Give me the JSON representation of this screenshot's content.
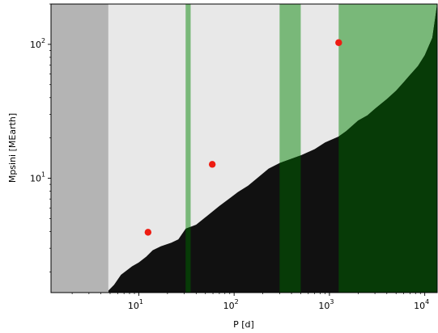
{
  "chart_data": {
    "type": "scatter",
    "xlabel": "P [d]",
    "ylabel": "Mpsini [MEarth]",
    "x_scale": "log",
    "y_scale": "log",
    "xlim": [
      1.2,
      13500
    ],
    "ylim": [
      1.4,
      200
    ],
    "x_ticks": [
      {
        "value": 10,
        "base": "10",
        "exp": "1"
      },
      {
        "value": 100,
        "base": "10",
        "exp": "2"
      },
      {
        "value": 1000,
        "base": "10",
        "exp": "3"
      },
      {
        "value": 10000,
        "base": "10",
        "exp": "4"
      }
    ],
    "y_ticks": [
      {
        "value": 10,
        "base": "10",
        "exp": "1"
      },
      {
        "value": 100,
        "base": "10",
        "exp": "2"
      }
    ],
    "grid": false,
    "legend": "none",
    "regions": [
      {
        "from": 1.2,
        "to": 4.8,
        "color": "#b4b4b4"
      },
      {
        "from": 4.8,
        "to": 13500,
        "color": "#e8e8e8"
      },
      {
        "from": 31,
        "to": 35,
        "color": "#79b879"
      },
      {
        "from": 300,
        "to": 500,
        "color": "#79b879"
      },
      {
        "from": 1250,
        "to": 13500,
        "color": "#79b879"
      }
    ],
    "boundary": {
      "points": [
        [
          4.8,
          1.45
        ],
        [
          5.5,
          1.6
        ],
        [
          6.5,
          1.9
        ],
        [
          8.5,
          2.2
        ],
        [
          10,
          2.35
        ],
        [
          12,
          2.6
        ],
        [
          14,
          2.9
        ],
        [
          17,
          3.1
        ],
        [
          22,
          3.3
        ],
        [
          26,
          3.5
        ],
        [
          31,
          4.2
        ],
        [
          40,
          4.5
        ],
        [
          55,
          5.4
        ],
        [
          70,
          6.2
        ],
        [
          90,
          7.1
        ],
        [
          110,
          7.9
        ],
        [
          140,
          8.8
        ],
        [
          180,
          10.2
        ],
        [
          230,
          11.8
        ],
        [
          300,
          13.0
        ],
        [
          500,
          14.8
        ],
        [
          700,
          16.5
        ],
        [
          900,
          18.5
        ],
        [
          1250,
          20.5
        ],
        [
          1500,
          22.5
        ],
        [
          2000,
          27.0
        ],
        [
          2500,
          29.5
        ],
        [
          3000,
          33.0
        ],
        [
          4000,
          39.0
        ],
        [
          5000,
          45.0
        ],
        [
          6000,
          52.0
        ],
        [
          7000,
          59.0
        ],
        [
          8500,
          69.0
        ],
        [
          10000,
          83.0
        ],
        [
          12000,
          112.0
        ],
        [
          13500,
          200
        ]
      ],
      "fill_color": "#111111",
      "in_green_color": "#073b07"
    },
    "points": [
      {
        "x": 12.5,
        "y": 3.95,
        "color": "#ee1c12"
      },
      {
        "x": 59,
        "y": 12.7,
        "color": "#ee1c12"
      },
      {
        "x": 1250,
        "y": 103,
        "color": "#ee1c12"
      }
    ]
  }
}
